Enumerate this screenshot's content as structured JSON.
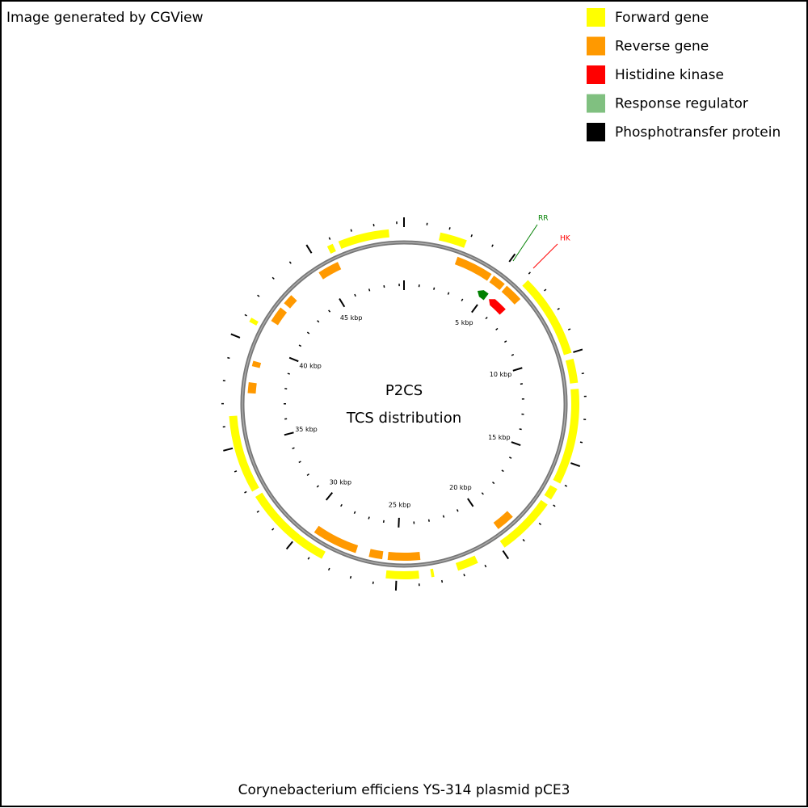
{
  "header": {
    "credit": "Image generated by CGView"
  },
  "legend": {
    "items": [
      "Forward gene",
      "Reverse gene",
      "Histidine kinase",
      "Response regulator",
      "Phosphotransfer protein"
    ]
  },
  "map": {
    "title": "P2CS",
    "subtitle": "TCS distribution",
    "tick_labels": [
      "5 kbp",
      "10 kbp",
      "15 kbp",
      "20 kbp",
      "25 kbp",
      "30 kbp",
      "35 kbp",
      "40 kbp",
      "45 kbp"
    ],
    "feature_labels": [
      "RR",
      "HK"
    ]
  },
  "footer": {
    "caption": "Corynebacterium efficiens YS-314 plasmid pCE3"
  }
}
